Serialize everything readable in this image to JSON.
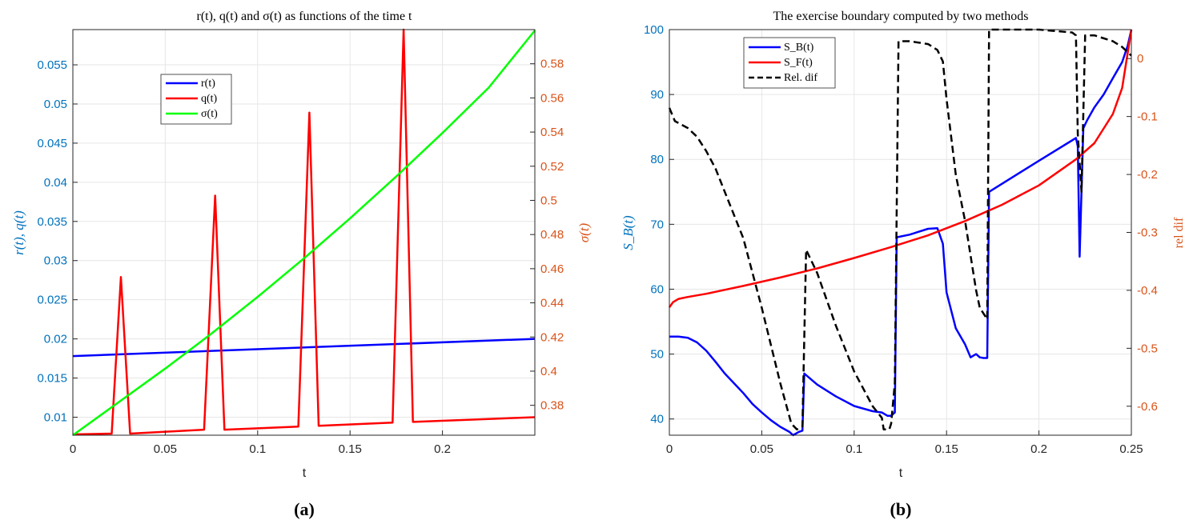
{
  "chart_data": [
    {
      "type": "line",
      "title": "r(t), q(t) and σ(t) as functions of the time t",
      "xlabel": "t",
      "ylabel": "r(t), q(t)",
      "ylabel_right": "σ(t)",
      "xlim": [
        0,
        0.25
      ],
      "ylim": [
        0.0077,
        0.0595
      ],
      "ylim_right": [
        0.3625,
        0.6
      ],
      "grid": true,
      "legend_position": "top-left-inner",
      "xticks": [
        "0",
        "0.05",
        "0.1",
        "0.15",
        "0.2"
      ],
      "yticks": [
        "0.01",
        "0.015",
        "0.02",
        "0.025",
        "0.03",
        "0.035",
        "0.04",
        "0.045",
        "0.05",
        "0.055"
      ],
      "yticks_right": [
        "0.38",
        "0.4",
        "0.42",
        "0.44",
        "0.46",
        "0.48",
        "0.5",
        "0.52",
        "0.54",
        "0.56",
        "0.58"
      ],
      "series": [
        {
          "name": "r(t)",
          "axis": "left",
          "color": "#0000ff",
          "x": [
            0,
            0.25
          ],
          "y": [
            0.0178,
            0.02
          ]
        },
        {
          "name": "q(t)",
          "axis": "left",
          "color": "#ff0000",
          "x": [
            0,
            0.021,
            0.026,
            0.031,
            0.071,
            0.077,
            0.082,
            0.122,
            0.128,
            0.133,
            0.173,
            0.179,
            0.184,
            0.25
          ],
          "y": [
            0.0078,
            0.0079,
            0.0279,
            0.0079,
            0.0084,
            0.0383,
            0.0084,
            0.0088,
            0.0489,
            0.0089,
            0.0093,
            0.0595,
            0.0094,
            0.01
          ]
        },
        {
          "name": "σ(t)",
          "axis": "right",
          "color": "#00ff00",
          "x": [
            0,
            0.025,
            0.05,
            0.075,
            0.1,
            0.125,
            0.15,
            0.175,
            0.2,
            0.225,
            0.25
          ],
          "y": [
            0.3625,
            0.382,
            0.4015,
            0.422,
            0.4435,
            0.466,
            0.4895,
            0.514,
            0.5395,
            0.566,
            0.5995
          ]
        }
      ]
    },
    {
      "type": "line",
      "title": "The exercise boundary computed by two methods",
      "xlabel": "t",
      "ylabel": "S_B(t)",
      "ylabel_right": "rel dif",
      "xlim": [
        0,
        0.25
      ],
      "ylim": [
        37.5,
        100
      ],
      "ylim_right": [
        -0.65,
        0.05
      ],
      "grid": true,
      "legend_position": "top-left-inner",
      "xticks": [
        "0",
        "0.05",
        "0.1",
        "0.15",
        "0.2",
        "0.25"
      ],
      "yticks": [
        "40",
        "50",
        "60",
        "70",
        "80",
        "90",
        "100"
      ],
      "yticks_right": [
        "-0.6",
        "-0.5",
        "-0.4",
        "-0.3",
        "-0.2",
        "-0.1",
        "0"
      ],
      "series": [
        {
          "name": "S_B(t)",
          "axis": "left",
          "color": "#0000ff",
          "x": [
            0,
            0.005,
            0.01,
            0.015,
            0.02,
            0.025,
            0.03,
            0.035,
            0.04,
            0.045,
            0.05,
            0.055,
            0.06,
            0.065,
            0.067,
            0.07,
            0.072,
            0.073,
            0.08,
            0.09,
            0.1,
            0.11,
            0.115,
            0.118,
            0.12,
            0.122,
            0.123,
            0.13,
            0.14,
            0.145,
            0.148,
            0.15,
            0.155,
            0.16,
            0.163,
            0.166,
            0.168,
            0.17,
            0.172,
            0.173,
            0.2,
            0.22,
            0.221,
            0.222,
            0.224,
            0.226,
            0.23,
            0.235,
            0.24,
            0.245,
            0.248,
            0.25
          ],
          "y": [
            52.7,
            52.7,
            52.5,
            51.8,
            50.5,
            48.8,
            47,
            45.5,
            44,
            42.3,
            41,
            39.8,
            38.8,
            38,
            37.5,
            38,
            38.2,
            47,
            45.3,
            43.5,
            42,
            41.2,
            41,
            40.5,
            40.5,
            41,
            68,
            68.4,
            69.3,
            69.4,
            67,
            59.5,
            54,
            51.5,
            49.5,
            50,
            49.5,
            49.4,
            49.4,
            75,
            79.8,
            83.3,
            82,
            65,
            84.8,
            86,
            88,
            90,
            92.5,
            95,
            97.5,
            100
          ]
        },
        {
          "name": "S_F(t)",
          "axis": "left",
          "color": "#ff0000",
          "x": [
            0,
            0.002,
            0.005,
            0.01,
            0.02,
            0.04,
            0.06,
            0.08,
            0.1,
            0.12,
            0.14,
            0.16,
            0.18,
            0.2,
            0.22,
            0.23,
            0.24,
            0.245,
            0.25
          ],
          "y": [
            57.2,
            58,
            58.5,
            58.8,
            59.3,
            60.5,
            61.8,
            63.2,
            64.8,
            66.5,
            68.3,
            70.5,
            73,
            76,
            80,
            82.5,
            87,
            91,
            100
          ]
        },
        {
          "name": "Rel. dif",
          "axis": "right",
          "color": "#000000",
          "dash": true,
          "x": [
            0,
            0.003,
            0.01,
            0.015,
            0.02,
            0.025,
            0.03,
            0.04,
            0.05,
            0.06,
            0.066,
            0.069,
            0.072,
            0.074,
            0.08,
            0.09,
            0.1,
            0.11,
            0.115,
            0.116,
            0.119,
            0.12,
            0.122,
            0.124,
            0.13,
            0.14,
            0.145,
            0.148,
            0.15,
            0.155,
            0.16,
            0.163,
            0.166,
            0.168,
            0.172,
            0.173,
            0.2,
            0.218,
            0.22,
            0.221,
            0.223,
            0.225,
            0.23,
            0.24,
            0.245,
            0.25
          ],
          "y": [
            -0.085,
            -0.108,
            -0.12,
            -0.135,
            -0.16,
            -0.19,
            -0.23,
            -0.31,
            -0.43,
            -0.56,
            -0.63,
            -0.64,
            -0.635,
            -0.33,
            -0.37,
            -0.46,
            -0.54,
            -0.6,
            -0.62,
            -0.64,
            -0.64,
            -0.63,
            -0.56,
            0.03,
            0.03,
            0.025,
            0.015,
            -0.005,
            -0.07,
            -0.2,
            -0.28,
            -0.34,
            -0.4,
            -0.43,
            -0.45,
            0.05,
            0.05,
            0.045,
            0.04,
            -0.13,
            -0.23,
            0.04,
            0.04,
            0.03,
            0.02,
            0.005
          ]
        }
      ]
    }
  ],
  "captions": [
    "(a)",
    "(b)"
  ]
}
